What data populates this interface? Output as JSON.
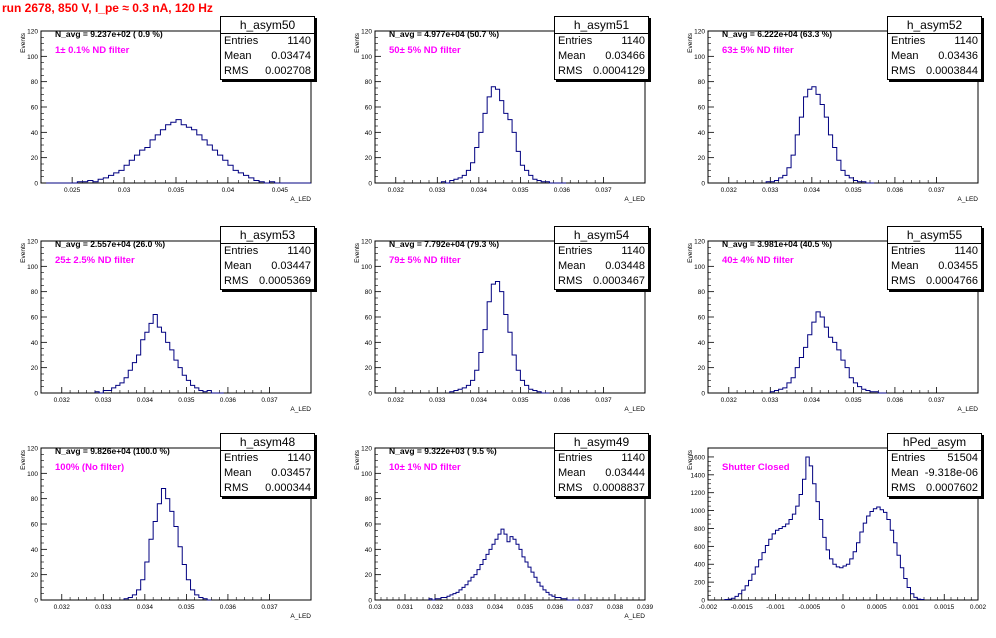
{
  "page_title": "run 2678,   850 V, I_pe ≈ 0.3 nA, 120 Hz",
  "colors": {
    "histogram": "#000080",
    "label": "#ff00ff",
    "title": "#ff0000"
  },
  "chart_data": [
    {
      "type": "histogram",
      "name": "h_asym50",
      "n_avg": "N_avg = 9.237e+02 ( 0.9 %)",
      "filter": "1± 0.1% ND filter",
      "stats": {
        "entries": "1140",
        "mean": "0.03474",
        "rms": "0.002708"
      },
      "ylabel": "Events",
      "xlabel": "A_LED",
      "xlim": [
        0.022,
        0.048
      ],
      "ylim": [
        0,
        120
      ],
      "xticks": [
        0.025,
        0.03,
        0.035,
        0.04,
        0.045
      ],
      "xtick_labels": [
        "0.025",
        "0.03",
        "0.035",
        "0.04",
        "0.045"
      ],
      "yticks": [
        0,
        20,
        40,
        60,
        80,
        100,
        120
      ],
      "ytick_labels": [
        "0",
        "20",
        "40",
        "60",
        "80",
        "100",
        "120"
      ],
      "bins": {
        "start": 0.0225,
        "width": 0.0005,
        "counts": [
          0,
          0,
          0,
          0,
          0,
          0,
          1,
          1,
          2,
          1,
          3,
          4,
          6,
          8,
          10,
          14,
          18,
          22,
          26,
          28,
          34,
          38,
          42,
          46,
          48,
          50,
          46,
          44,
          42,
          38,
          34,
          30,
          26,
          22,
          18,
          14,
          10,
          8,
          6,
          4,
          2,
          1,
          0,
          1,
          0,
          0,
          0,
          0,
          0,
          0,
          0
        ]
      }
    },
    {
      "type": "histogram",
      "name": "h_asym51",
      "n_avg": "N_avg = 4.977e+04 (50.7 %)",
      "filter": "50± 5% ND filter",
      "stats": {
        "entries": "1140",
        "mean": "0.03466",
        "rms": "0.0004129"
      },
      "ylabel": "Events",
      "xlabel": "A_LED",
      "xlim": [
        0.0315,
        0.038
      ],
      "ylim": [
        0,
        120
      ],
      "xticks": [
        0.032,
        0.033,
        0.034,
        0.035,
        0.036,
        0.037
      ],
      "xtick_labels": [
        "0.032",
        "0.033",
        "0.034",
        "0.035",
        "0.036",
        "0.037"
      ],
      "yticks": [
        0,
        20,
        40,
        60,
        80,
        100,
        120
      ],
      "ytick_labels": [
        "0",
        "20",
        "40",
        "60",
        "80",
        "100",
        "120"
      ],
      "bins": {
        "start": 0.0331,
        "width": 0.0001,
        "counts": [
          1,
          0,
          2,
          3,
          4,
          6,
          10,
          16,
          28,
          40,
          55,
          68,
          76,
          74,
          65,
          55,
          50,
          40,
          25,
          14,
          10,
          6,
          3,
          2,
          1,
          1,
          0,
          0,
          0,
          0
        ]
      }
    },
    {
      "type": "histogram",
      "name": "h_asym52",
      "n_avg": "N_avg = 6.222e+04 (63.3 %)",
      "filter": "63± 5% ND filter",
      "stats": {
        "entries": "1140",
        "mean": "0.03436",
        "rms": "0.0003844"
      },
      "ylabel": "Events",
      "xlabel": "A_LED",
      "xlim": [
        0.0315,
        0.038
      ],
      "ylim": [
        0,
        120
      ],
      "xticks": [
        0.032,
        0.033,
        0.034,
        0.035,
        0.036,
        0.037
      ],
      "xtick_labels": [
        "0.032",
        "0.033",
        "0.034",
        "0.035",
        "0.036",
        "0.037"
      ],
      "yticks": [
        0,
        20,
        40,
        60,
        80,
        100,
        120
      ],
      "ytick_labels": [
        "0",
        "20",
        "40",
        "60",
        "80",
        "100",
        "120"
      ],
      "bins": {
        "start": 0.0329,
        "width": 0.0001,
        "counts": [
          1,
          1,
          2,
          4,
          6,
          12,
          22,
          38,
          52,
          68,
          74,
          76,
          70,
          62,
          52,
          38,
          28,
          18,
          10,
          6,
          4,
          2,
          1,
          1,
          0,
          0
        ]
      }
    },
    {
      "type": "histogram",
      "name": "h_asym53",
      "n_avg": "N_avg = 2.557e+04 (26.0 %)",
      "filter": "25± 2.5% ND filter",
      "stats": {
        "entries": "1140",
        "mean": "0.03447",
        "rms": "0.0005369"
      },
      "ylabel": "Events",
      "xlabel": "A_LED",
      "xlim": [
        0.0315,
        0.038
      ],
      "ylim": [
        0,
        120
      ],
      "xticks": [
        0.032,
        0.033,
        0.034,
        0.035,
        0.036,
        0.037
      ],
      "xtick_labels": [
        "0.032",
        "0.033",
        "0.034",
        "0.035",
        "0.036",
        "0.037"
      ],
      "yticks": [
        0,
        20,
        40,
        60,
        80,
        100,
        120
      ],
      "ytick_labels": [
        "0",
        "20",
        "40",
        "60",
        "80",
        "100",
        "120"
      ],
      "bins": {
        "start": 0.0328,
        "width": 0.0001,
        "counts": [
          1,
          0,
          2,
          2,
          4,
          6,
          8,
          12,
          18,
          24,
          30,
          42,
          48,
          55,
          62,
          52,
          48,
          40,
          34,
          26,
          20,
          14,
          10,
          6,
          4,
          2,
          1,
          2,
          0,
          0,
          0
        ]
      }
    },
    {
      "type": "histogram",
      "name": "h_asym54",
      "n_avg": "N_avg = 7.792e+04 (79.3 %)",
      "filter": "79± 5% ND filter",
      "stats": {
        "entries": "1140",
        "mean": "0.03448",
        "rms": "0.0003467"
      },
      "ylabel": "Events",
      "xlabel": "A_LED",
      "xlim": [
        0.0315,
        0.038
      ],
      "ylim": [
        0,
        120
      ],
      "xticks": [
        0.032,
        0.033,
        0.034,
        0.035,
        0.036,
        0.037
      ],
      "xtick_labels": [
        "0.032",
        "0.033",
        "0.034",
        "0.035",
        "0.036",
        "0.037"
      ],
      "yticks": [
        0,
        20,
        40,
        60,
        80,
        100,
        120
      ],
      "ytick_labels": [
        "0",
        "20",
        "40",
        "60",
        "80",
        "100",
        "120"
      ],
      "bins": {
        "start": 0.0333,
        "width": 0.0001,
        "counts": [
          1,
          2,
          3,
          4,
          6,
          10,
          18,
          32,
          50,
          72,
          86,
          88,
          80,
          62,
          48,
          30,
          18,
          10,
          6,
          3,
          2,
          1,
          0,
          0
        ]
      }
    },
    {
      "type": "histogram",
      "name": "h_asym55",
      "n_avg": "N_avg = 3.981e+04 (40.5 %)",
      "filter": "40± 4% ND filter",
      "stats": {
        "entries": "1140",
        "mean": "0.03455",
        "rms": "0.0004766"
      },
      "ylabel": "Events",
      "xlabel": "A_LED",
      "xlim": [
        0.0315,
        0.038
      ],
      "ylim": [
        0,
        120
      ],
      "xticks": [
        0.032,
        0.033,
        0.034,
        0.035,
        0.036,
        0.037
      ],
      "xtick_labels": [
        "0.032",
        "0.033",
        "0.034",
        "0.035",
        "0.036",
        "0.037"
      ],
      "yticks": [
        0,
        20,
        40,
        60,
        80,
        100,
        120
      ],
      "ytick_labels": [
        "0",
        "20",
        "40",
        "60",
        "80",
        "100",
        "120"
      ],
      "bins": {
        "start": 0.033,
        "width": 0.0001,
        "counts": [
          1,
          2,
          3,
          4,
          8,
          12,
          20,
          28,
          36,
          46,
          56,
          64,
          60,
          52,
          44,
          40,
          34,
          26,
          20,
          12,
          8,
          5,
          3,
          2,
          1,
          1,
          0,
          0
        ]
      }
    },
    {
      "type": "histogram",
      "name": "h_asym48",
      "n_avg": "N_avg = 9.826e+04 (100.0 %)",
      "filter": "100% (No filter)",
      "stats": {
        "entries": "1140",
        "mean": "0.03457",
        "rms": "0.000344"
      },
      "ylabel": "Events",
      "xlabel": "A_LED",
      "xlim": [
        0.0315,
        0.038
      ],
      "ylim": [
        0,
        120
      ],
      "xticks": [
        0.032,
        0.033,
        0.034,
        0.035,
        0.036,
        0.037
      ],
      "xtick_labels": [
        "0.032",
        "0.033",
        "0.034",
        "0.035",
        "0.036",
        "0.037"
      ],
      "yticks": [
        0,
        20,
        40,
        60,
        80,
        100,
        120
      ],
      "ytick_labels": [
        "0",
        "20",
        "40",
        "60",
        "80",
        "100",
        "120"
      ],
      "bins": {
        "start": 0.0335,
        "width": 0.0001,
        "counts": [
          1,
          2,
          4,
          8,
          16,
          30,
          48,
          62,
          76,
          88,
          80,
          70,
          58,
          42,
          28,
          16,
          8,
          4,
          2,
          1,
          0
        ]
      }
    },
    {
      "type": "histogram",
      "name": "h_asym49",
      "n_avg": "N_avg = 9.322e+03 ( 9.5 %)",
      "filter": "10± 1% ND filter",
      "stats": {
        "entries": "1140",
        "mean": "0.03444",
        "rms": "0.0008837"
      },
      "ylabel": "Events",
      "xlabel": "A_LED",
      "xlim": [
        0.03,
        0.039
      ],
      "ylim": [
        0,
        120
      ],
      "xticks": [
        0.03,
        0.031,
        0.032,
        0.033,
        0.034,
        0.035,
        0.036,
        0.037,
        0.038,
        0.039
      ],
      "xtick_labels": [
        "0.03",
        "0.031",
        "0.032",
        "0.033",
        "0.034",
        "0.035",
        "0.036",
        "0.037",
        "0.038",
        "0.039"
      ],
      "yticks": [
        0,
        20,
        40,
        60,
        80,
        100,
        120
      ],
      "ytick_labels": [
        "0",
        "20",
        "40",
        "60",
        "80",
        "100",
        "120"
      ],
      "bins": {
        "start": 0.0318,
        "width": 0.0001,
        "counts": [
          1,
          0,
          1,
          1,
          2,
          2,
          3,
          4,
          5,
          6,
          8,
          10,
          12,
          15,
          18,
          20,
          24,
          28,
          32,
          36,
          40,
          44,
          48,
          52,
          56,
          52,
          46,
          50,
          48,
          44,
          40,
          34,
          30,
          26,
          22,
          18,
          14,
          11,
          8,
          6,
          4,
          3,
          2,
          2,
          1,
          1,
          0,
          0,
          0,
          0
        ]
      }
    },
    {
      "type": "histogram",
      "name": "hPed_asym",
      "n_avg": "",
      "filter": "Shutter Closed",
      "stats": {
        "entries": "51504",
        "mean": "-9.318e-06",
        "rms": "0.0007602"
      },
      "ylabel": "Events",
      "xlabel": "",
      "xlim": [
        -0.002,
        0.002
      ],
      "ylim": [
        0,
        1700
      ],
      "xticks": [
        -0.002,
        -0.0015,
        -0.001,
        -0.0005,
        0,
        0.0005,
        0.001,
        0.0015,
        0.002
      ],
      "xtick_labels": [
        "-0.002",
        "-0.0015",
        "-0.001",
        "-0.0005",
        "0",
        "0.0005",
        "0.001",
        "0.0015",
        "0.002"
      ],
      "yticks": [
        0,
        200,
        400,
        600,
        800,
        1000,
        1200,
        1400,
        1600
      ],
      "ytick_labels": [
        "0",
        "200",
        "400",
        "600",
        "800",
        "1000",
        "1200",
        "1400",
        "1600"
      ],
      "bins": {
        "start": -0.00175,
        "width": 5e-05,
        "counts": [
          5,
          10,
          20,
          40,
          70,
          110,
          160,
          220,
          290,
          370,
          450,
          530,
          610,
          680,
          740,
          780,
          800,
          820,
          850,
          900,
          960,
          1050,
          1180,
          1350,
          1600,
          1500,
          1300,
          1100,
          900,
          700,
          560,
          460,
          400,
          370,
          360,
          380,
          400,
          460,
          540,
          640,
          760,
          860,
          940,
          990,
          1020,
          1040,
          1010,
          980,
          900,
          780,
          640,
          500,
          360,
          240,
          140,
          70,
          30,
          10,
          5
        ]
      }
    }
  ]
}
